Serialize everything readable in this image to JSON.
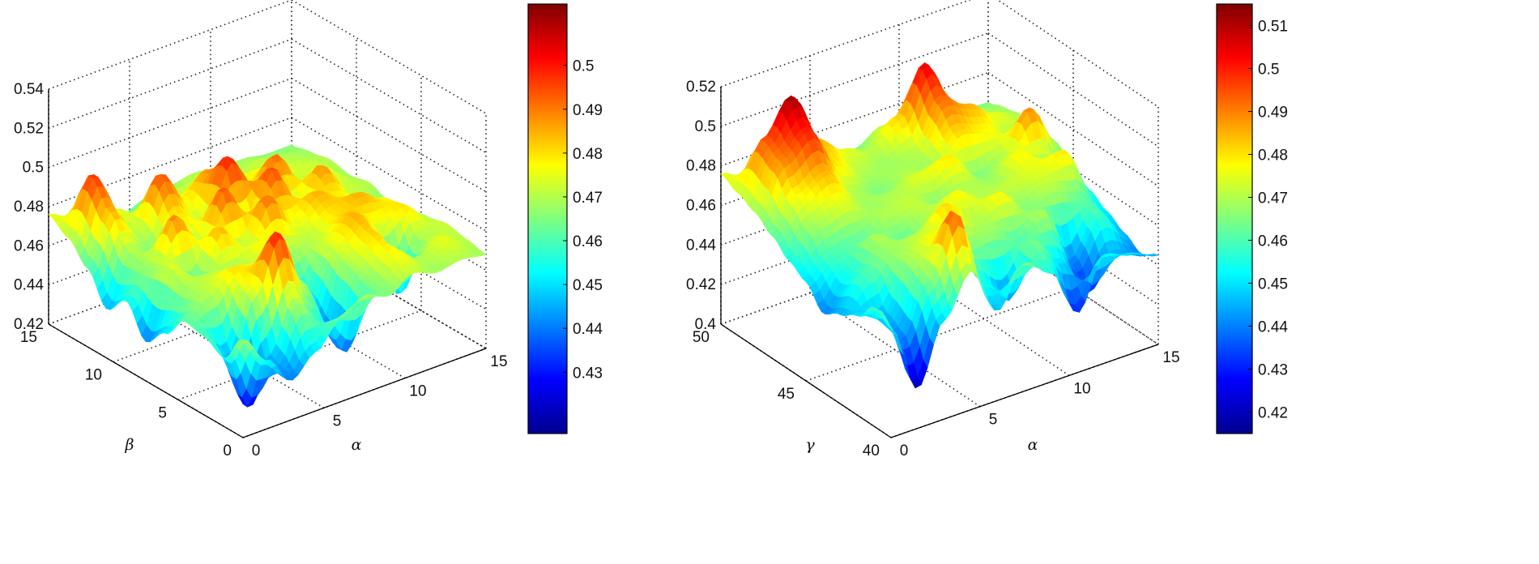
{
  "chart_data": [
    {
      "type": "surface",
      "x_axis": {
        "label": "α",
        "range": [
          0,
          15
        ],
        "ticks": [
          "0",
          "5",
          "10",
          "15"
        ]
      },
      "y_axis": {
        "label": "β",
        "range": [
          0,
          15
        ],
        "ticks": [
          "0",
          "5",
          "10",
          "15"
        ]
      },
      "z_axis": {
        "range": [
          0.42,
          0.54
        ],
        "ticks": [
          "0.42",
          "0.44",
          "0.46",
          "0.48",
          "0.5",
          "0.52",
          "0.54"
        ]
      },
      "grid": true,
      "colormap": "jet",
      "colorbar": {
        "range": [
          0.416,
          0.514
        ],
        "ticks": [
          "0.43",
          "0.44",
          "0.45",
          "0.46",
          "0.47",
          "0.48",
          "0.49",
          "0.5"
        ],
        "placement": "right"
      },
      "z_grid_note_axes": "rows: beta 0..15 step 1.5, cols: alpha 0..15 step 1.5",
      "z": [
        [
          0.47,
          0.455,
          0.44,
          0.45,
          0.462,
          0.47,
          0.465,
          0.472,
          0.468,
          0.47,
          0.468
        ],
        [
          0.455,
          0.425,
          0.445,
          0.47,
          0.455,
          0.435,
          0.465,
          0.478,
          0.47,
          0.475,
          0.47
        ],
        [
          0.46,
          0.445,
          0.475,
          0.5,
          0.47,
          0.44,
          0.47,
          0.482,
          0.445,
          0.47,
          0.472
        ],
        [
          0.462,
          0.47,
          0.48,
          0.478,
          0.465,
          0.45,
          0.475,
          0.485,
          0.475,
          0.48,
          0.47
        ],
        [
          0.45,
          0.47,
          0.472,
          0.468,
          0.478,
          0.47,
          0.47,
          0.48,
          0.485,
          0.478,
          0.468
        ],
        [
          0.44,
          0.475,
          0.462,
          0.485,
          0.47,
          0.492,
          0.476,
          0.485,
          0.478,
          0.47,
          0.466
        ],
        [
          0.455,
          0.468,
          0.49,
          0.47,
          0.495,
          0.472,
          0.496,
          0.47,
          0.488,
          0.472,
          0.47
        ],
        [
          0.445,
          0.47,
          0.465,
          0.48,
          0.47,
          0.5,
          0.48,
          0.492,
          0.47,
          0.475,
          0.468
        ],
        [
          0.46,
          0.485,
          0.47,
          0.495,
          0.478,
          0.488,
          0.472,
          0.478,
          0.474,
          0.472,
          0.47
        ],
        [
          0.47,
          0.498,
          0.475,
          0.468,
          0.47,
          0.472,
          0.475,
          0.47,
          0.472,
          0.47,
          0.468
        ],
        [
          0.476,
          0.47,
          0.465,
          0.462,
          0.466,
          0.468,
          0.47,
          0.468,
          0.468,
          0.466,
          0.466
        ]
      ]
    },
    {
      "type": "surface",
      "x_axis": {
        "label": "α",
        "range": [
          0,
          15
        ],
        "ticks": [
          "0",
          "5",
          "10",
          "15"
        ]
      },
      "y_axis": {
        "label": "γ",
        "range": [
          40,
          50
        ],
        "ticks": [
          "40",
          "45",
          "50"
        ]
      },
      "z_axis": {
        "range": [
          0.4,
          0.52
        ],
        "ticks": [
          "0.4",
          "0.42",
          "0.44",
          "0.46",
          "0.48",
          "0.5",
          "0.52"
        ]
      },
      "grid": true,
      "colormap": "jet",
      "colorbar": {
        "range": [
          0.415,
          0.515
        ],
        "ticks": [
          "0.42",
          "0.43",
          "0.44",
          "0.45",
          "0.46",
          "0.47",
          "0.48",
          "0.49",
          "0.5",
          "0.51"
        ],
        "placement": "right"
      },
      "z_grid_note_axes": "rows: gamma 40..50 step 1, cols: alpha 0..15 step 1.5",
      "z": [
        [
          0.455,
          0.42,
          0.45,
          0.47,
          0.445,
          0.465,
          0.455,
          0.43,
          0.455,
          0.45,
          0.445
        ],
        [
          0.46,
          0.44,
          0.465,
          0.495,
          0.455,
          0.44,
          0.465,
          0.45,
          0.43,
          0.445,
          0.44
        ],
        [
          0.45,
          0.445,
          0.47,
          0.478,
          0.465,
          0.468,
          0.46,
          0.47,
          0.44,
          0.46,
          0.445
        ],
        [
          0.445,
          0.46,
          0.468,
          0.472,
          0.482,
          0.47,
          0.478,
          0.465,
          0.47,
          0.462,
          0.45
        ],
        [
          0.44,
          0.455,
          0.47,
          0.462,
          0.47,
          0.478,
          0.47,
          0.472,
          0.475,
          0.48,
          0.455
        ],
        [
          0.45,
          0.46,
          0.462,
          0.47,
          0.472,
          0.465,
          0.47,
          0.468,
          0.478,
          0.468,
          0.46
        ],
        [
          0.455,
          0.47,
          0.475,
          0.468,
          0.47,
          0.475,
          0.48,
          0.465,
          0.47,
          0.49,
          0.468
        ],
        [
          0.462,
          0.478,
          0.485,
          0.47,
          0.465,
          0.47,
          0.468,
          0.482,
          0.478,
          0.47,
          0.47
        ],
        [
          0.468,
          0.49,
          0.5,
          0.48,
          0.47,
          0.468,
          0.47,
          0.492,
          0.485,
          0.475,
          0.47
        ],
        [
          0.472,
          0.495,
          0.512,
          0.485,
          0.475,
          0.47,
          0.482,
          0.505,
          0.474,
          0.47,
          0.468
        ],
        [
          0.476,
          0.47,
          0.468,
          0.465,
          0.462,
          0.465,
          0.472,
          0.47,
          0.468,
          0.466,
          0.465
        ]
      ]
    }
  ]
}
